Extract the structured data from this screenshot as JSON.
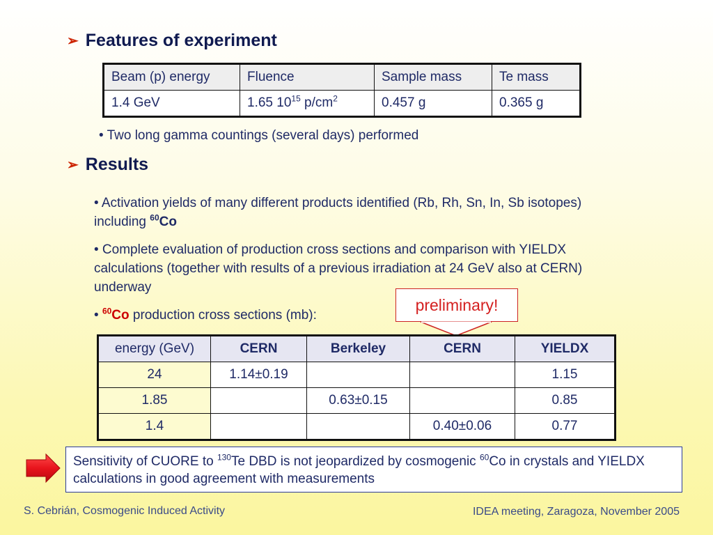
{
  "section1": {
    "title": "Features of experiment",
    "table": {
      "headers": [
        "Beam (p) energy",
        "Fluence",
        "Sample mass",
        "Te mass"
      ],
      "row": {
        "beam": "1.4 GeV",
        "fluence_base": "1.65 10",
        "fluence_exp": "15",
        "fluence_unit": " p/cm",
        "fluence_unit_exp": "2",
        "sample_mass": "0.457 g",
        "te_mass": "0.365 g"
      }
    },
    "note": "• Two long gamma countings (several days) performed"
  },
  "section2": {
    "title": "Results",
    "bullet1": {
      "text": "• Activation yields of many different products identified (Rb, Rh, Sn, In, Sb isotopes) including ",
      "iso_mass": "60",
      "iso_elem": "Co"
    },
    "bullet2": "• Complete evaluation of production cross sections and comparison with YIELDX calculations (together with results of a previous irradiation at 24 GeV also at CERN) underway",
    "bullet3": {
      "prefix": "• ",
      "iso_mass": "60",
      "iso_elem": "Co",
      "suffix": " production cross sections (mb):"
    }
  },
  "preliminary_label": "preliminary!",
  "cross_table": {
    "headers": [
      "energy (GeV)",
      "CERN",
      "Berkeley",
      "CERN",
      "YIELDX"
    ],
    "rows": [
      [
        "24",
        "1.14±0.19",
        "",
        "",
        "1.15"
      ],
      [
        "1.85",
        "",
        "0.63±0.15",
        "",
        "0.85"
      ],
      [
        "1.4",
        "",
        "",
        "0.40±0.06",
        "0.77"
      ]
    ]
  },
  "conclusion": {
    "part1": "Sensitivity of CUORE to ",
    "sup1": "130",
    "part2": "Te DBD is not jeopardized by cosmogenic ",
    "sup2": "60",
    "part3": "Co in crystals and YIELDX calculations in good agreement with measurements"
  },
  "footer": {
    "left": "S. Cebrián, Cosmogenic Induced Activity",
    "right": "IDEA meeting, Zaragoza, November 2005"
  },
  "colors": {
    "bullet_arrow": "#cc2200",
    "callout_arrow": "#e8141c",
    "preliminary": "#d42020",
    "isotope_highlight": "#cc0000"
  }
}
